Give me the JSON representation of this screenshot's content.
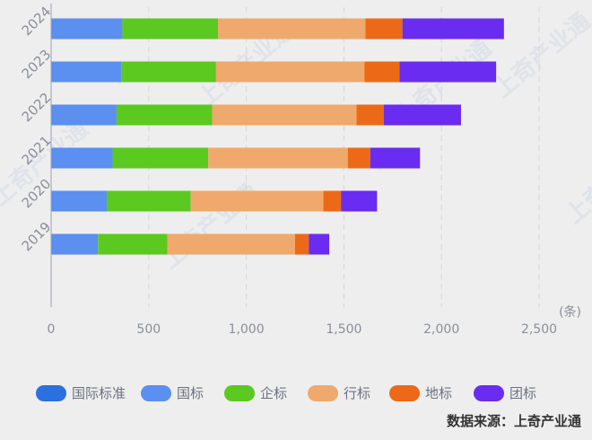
{
  "chart_data": {
    "type": "bar",
    "orientation": "horizontal",
    "stacked": true,
    "categories": [
      "2024",
      "2023",
      "2022",
      "2021",
      "2020",
      "2019"
    ],
    "series": [
      {
        "name": "国际标准",
        "color": "#2c6fe0",
        "values": [
          0,
          0,
          0,
          0,
          0,
          0
        ]
      },
      {
        "name": "国标",
        "color": "#5b8ff0",
        "values": [
          365,
          360,
          335,
          315,
          285,
          240
        ]
      },
      {
        "name": "企标",
        "color": "#5cc921",
        "values": [
          490,
          485,
          490,
          490,
          430,
          355
        ]
      },
      {
        "name": "行标",
        "color": "#f0a96c",
        "values": [
          755,
          760,
          740,
          715,
          680,
          655
        ]
      },
      {
        "name": "地标",
        "color": "#ec6a17",
        "values": [
          190,
          180,
          140,
          115,
          90,
          70
        ]
      },
      {
        "name": "团标",
        "color": "#6a2cf0",
        "values": [
          520,
          495,
          395,
          255,
          185,
          105
        ]
      }
    ],
    "xlim": [
      0,
      2500
    ],
    "xticks": [
      "0",
      "500",
      "1,000",
      "1,500",
      "2,000",
      "2,500"
    ],
    "xunit": "(条)",
    "grid": true,
    "legend_position": "bottom"
  },
  "watermark": "上奇产业通",
  "source_text": "数据来源：上奇产业通"
}
